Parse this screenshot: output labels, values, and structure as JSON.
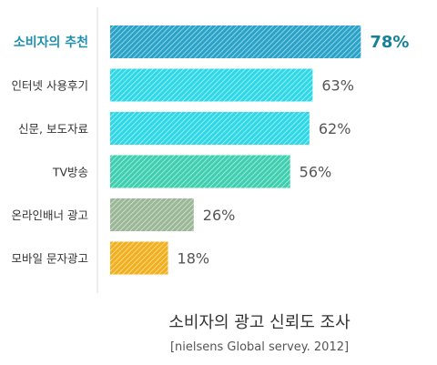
{
  "chart_data": {
    "type": "bar",
    "orientation": "horizontal",
    "title": "소비자의 광고 신뢰도 조사",
    "subtitle": "[nielsens Global servey. 2012]",
    "categories": [
      "소비자의 추천",
      "인터넷 사용후기",
      "신문, 보도자료",
      "TV방송",
      "온라인배너 광고",
      "모바일 문자광고"
    ],
    "values": [
      78,
      63,
      62,
      56,
      26,
      18
    ],
    "value_labels": [
      "78%",
      "63%",
      "62%",
      "56%",
      "26%",
      "18%"
    ],
    "xlim": [
      0,
      100
    ],
    "grid": false,
    "highlight_index": 0,
    "colors": [
      "#2aa3c9",
      "#2ed8e6",
      "#2ed8e6",
      "#3ecfb0",
      "#9ab897",
      "#f2b01e"
    ],
    "highlight_label_color": "#1f8fb0"
  }
}
